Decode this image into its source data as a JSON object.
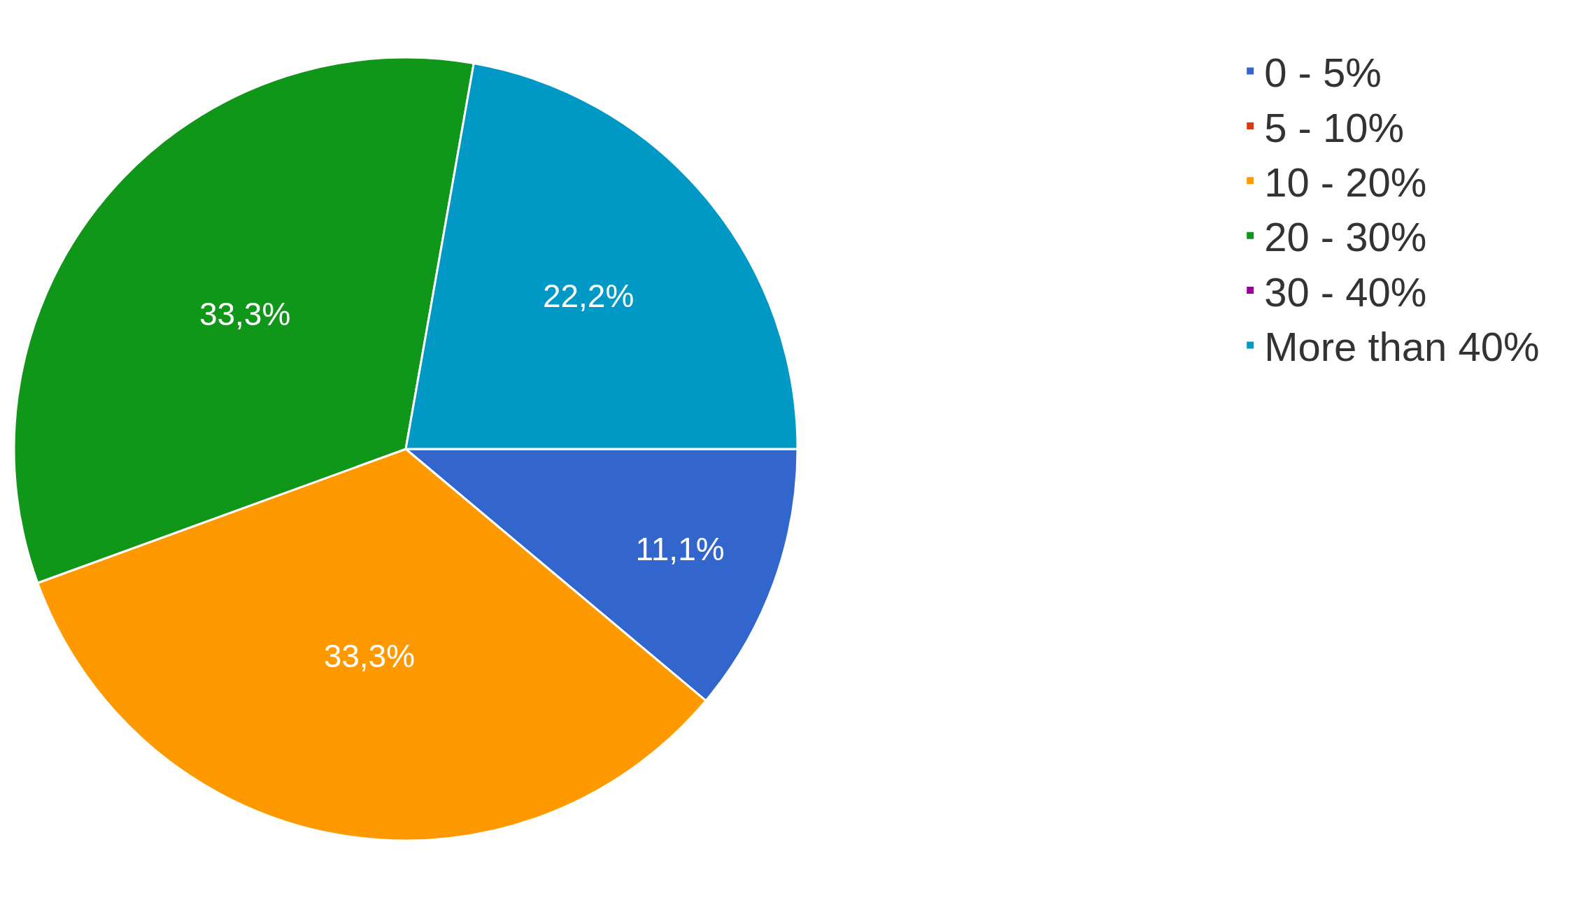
{
  "chart_data": {
    "type": "pie",
    "categories": [
      "0 - 5%",
      "5 - 10%",
      "10 - 20%",
      "20 - 30%",
      "30 - 40%",
      "More than 40%"
    ],
    "values": [
      11.1,
      0,
      33.3,
      33.3,
      0,
      22.2
    ],
    "value_labels": [
      "11,1%",
      null,
      "33,3%",
      "33,3%",
      null,
      "22,2%"
    ],
    "colors": [
      "#3366cc",
      "#dc3912",
      "#ff9900",
      "#109618",
      "#990099",
      "#0099c6"
    ],
    "legend": "top right"
  }
}
